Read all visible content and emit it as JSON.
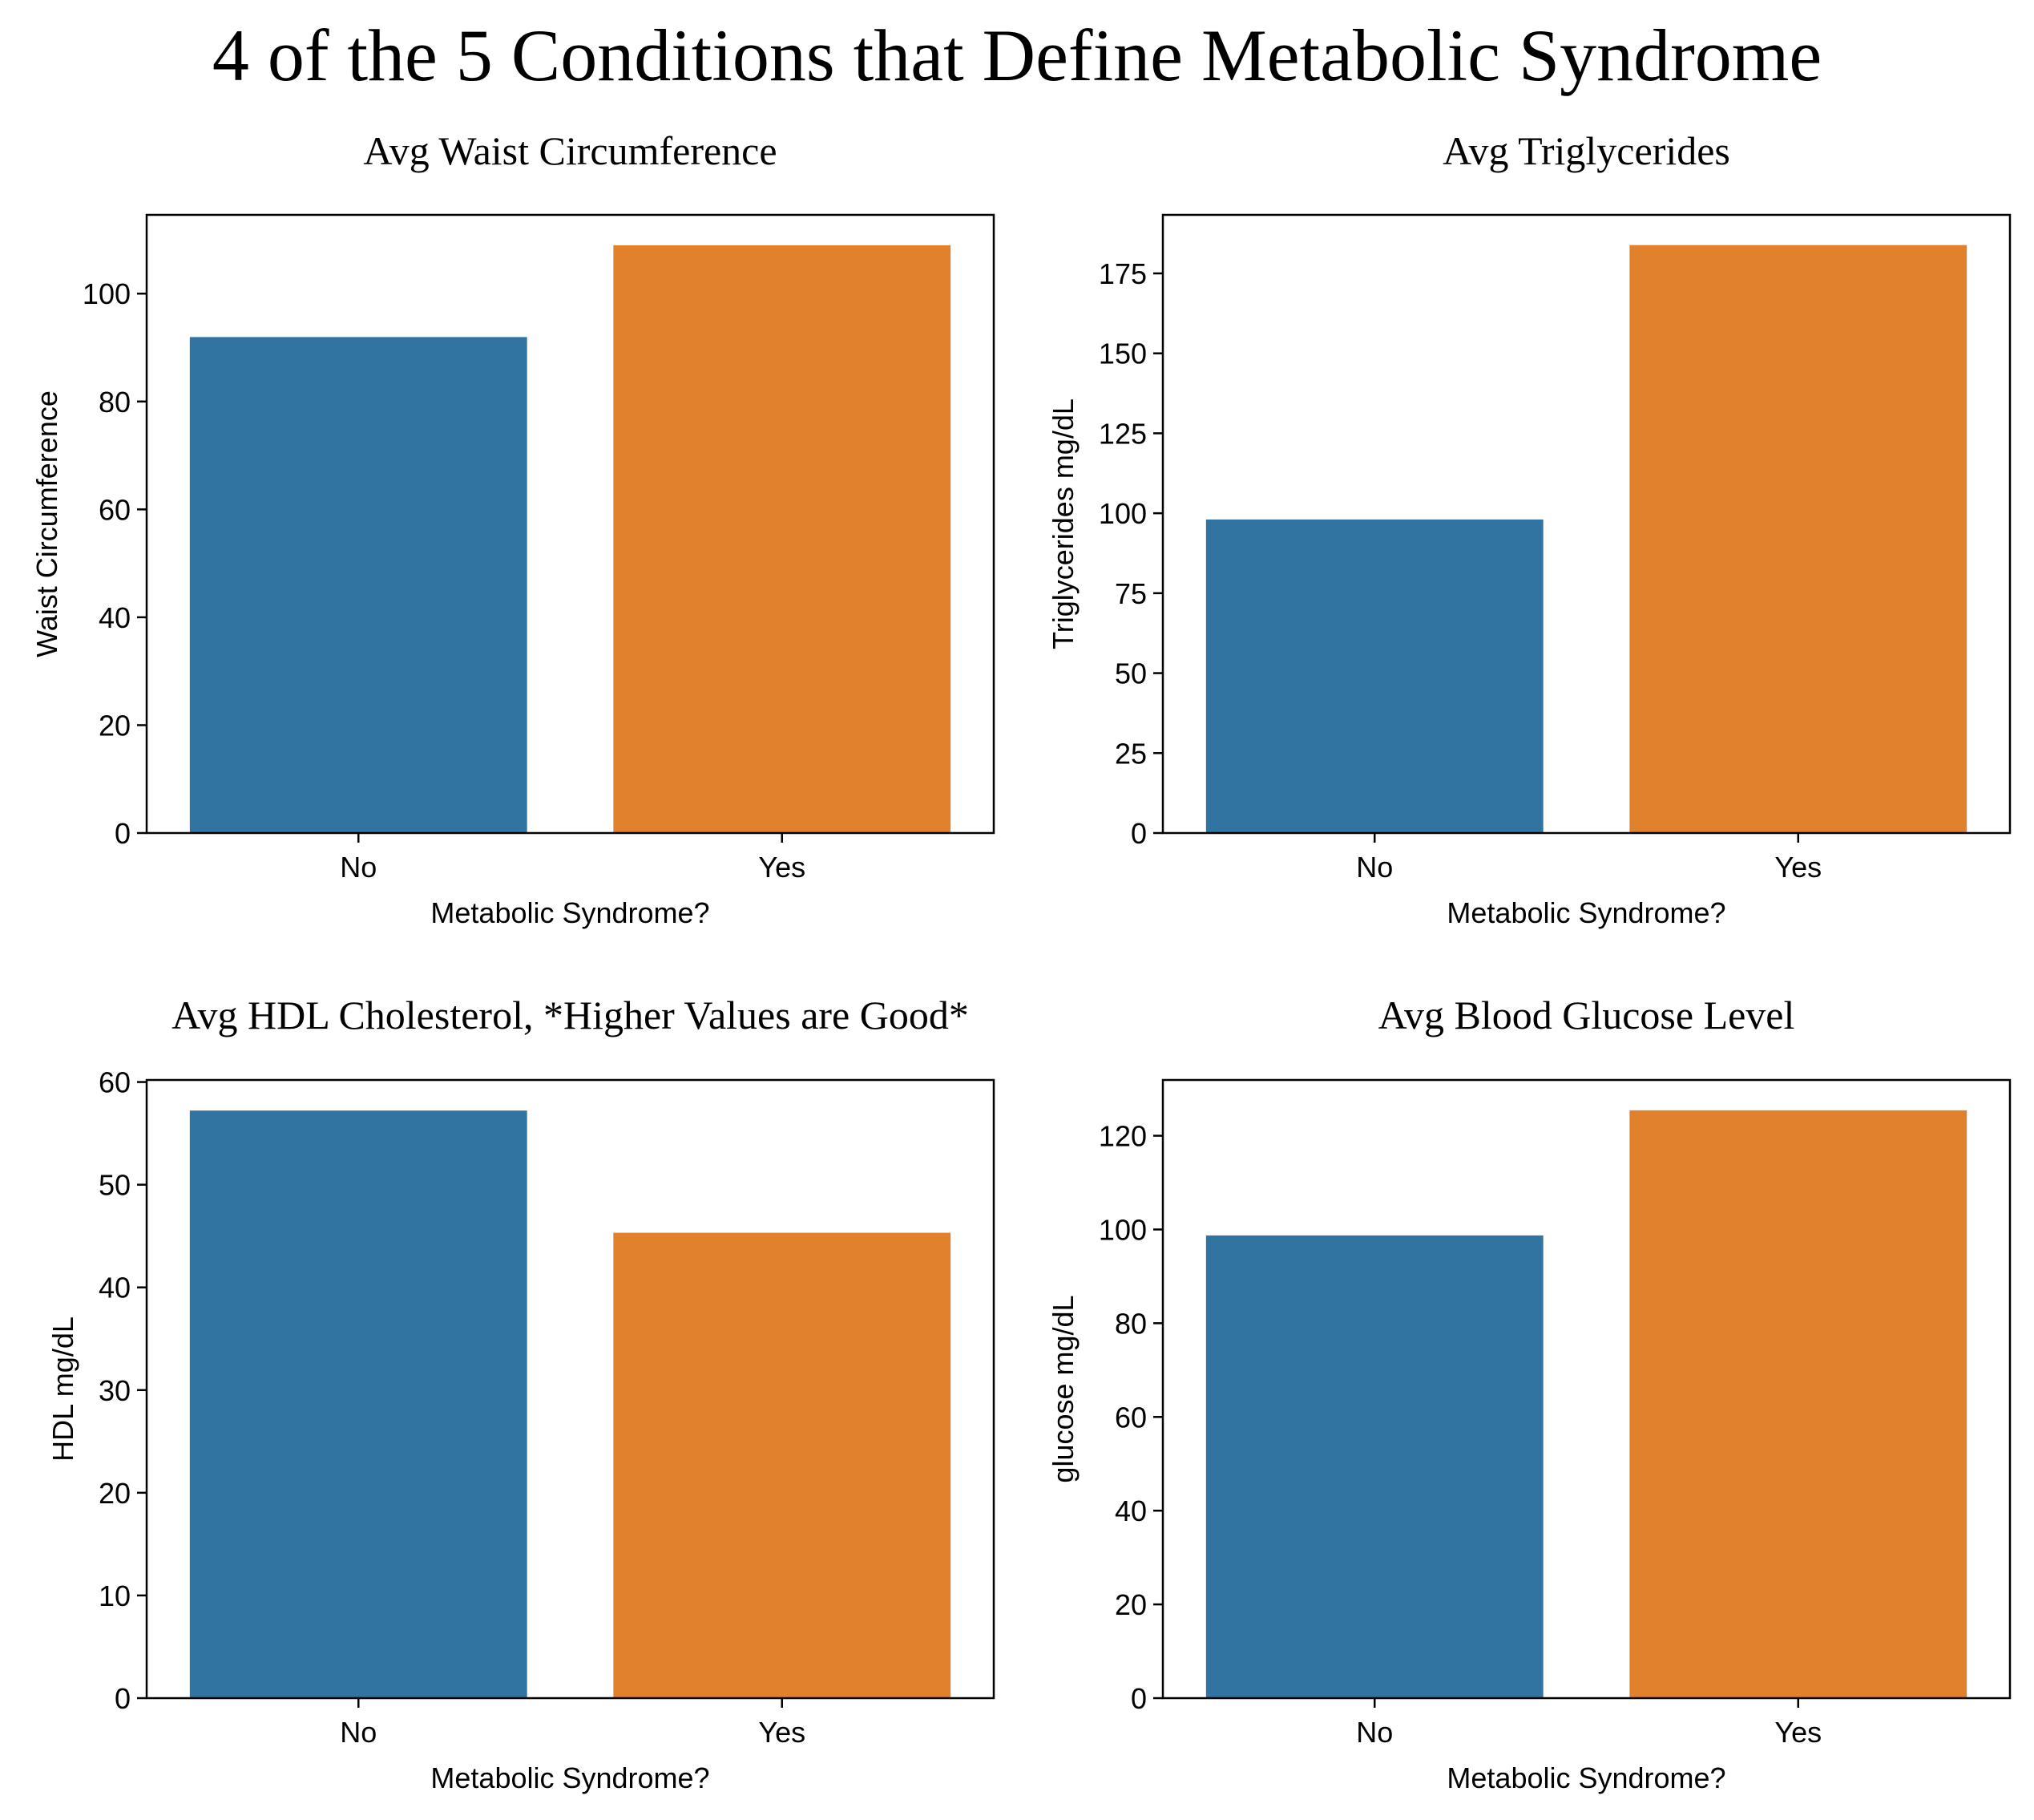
{
  "figure": {
    "suptitle": "4 of the 5 Conditions that Define Metabolic Syndrome"
  },
  "colors": {
    "no": "#3274a1",
    "yes": "#e1812c",
    "edge": "#ffffff"
  },
  "chart_data": [
    {
      "type": "bar",
      "title": "Avg Waist Circumference",
      "xlabel": "Metabolic Syndrome?",
      "ylabel": "Waist Circumference",
      "categories": [
        "No",
        "Yes"
      ],
      "values": [
        92.1,
        109.1
      ],
      "ylim": [
        0,
        114.6
      ],
      "yticks": [
        0,
        20,
        40,
        60,
        80,
        100
      ],
      "grid": false
    },
    {
      "type": "bar",
      "title": "Avg Triglycerides",
      "xlabel": "Metabolic Syndrome?",
      "ylabel": "Triglycerides mg/dL",
      "categories": [
        "No",
        "Yes"
      ],
      "values": [
        98.3,
        184.1
      ],
      "ylim": [
        0,
        193.3
      ],
      "yticks": [
        0,
        25,
        50,
        75,
        100,
        125,
        150,
        175
      ],
      "grid": false
    },
    {
      "type": "bar",
      "title": "Avg HDL Cholesterol, *Higher Values are Good*",
      "xlabel": "Metabolic Syndrome?",
      "ylabel": "HDL mg/dL",
      "categories": [
        "No",
        "Yes"
      ],
      "values": [
        57.3,
        45.4
      ],
      "ylim": [
        0,
        60.2
      ],
      "yticks": [
        0,
        10,
        20,
        30,
        40,
        50,
        60
      ],
      "grid": false
    },
    {
      "type": "bar",
      "title": "Avg Blood Glucose Level",
      "xlabel": "Metabolic Syndrome?",
      "ylabel": "glucose mg/dL",
      "categories": [
        "No",
        "Yes"
      ],
      "values": [
        98.9,
        125.6
      ],
      "ylim": [
        0,
        131.9
      ],
      "yticks": [
        0,
        20,
        40,
        60,
        80,
        100,
        120
      ],
      "grid": false
    }
  ]
}
